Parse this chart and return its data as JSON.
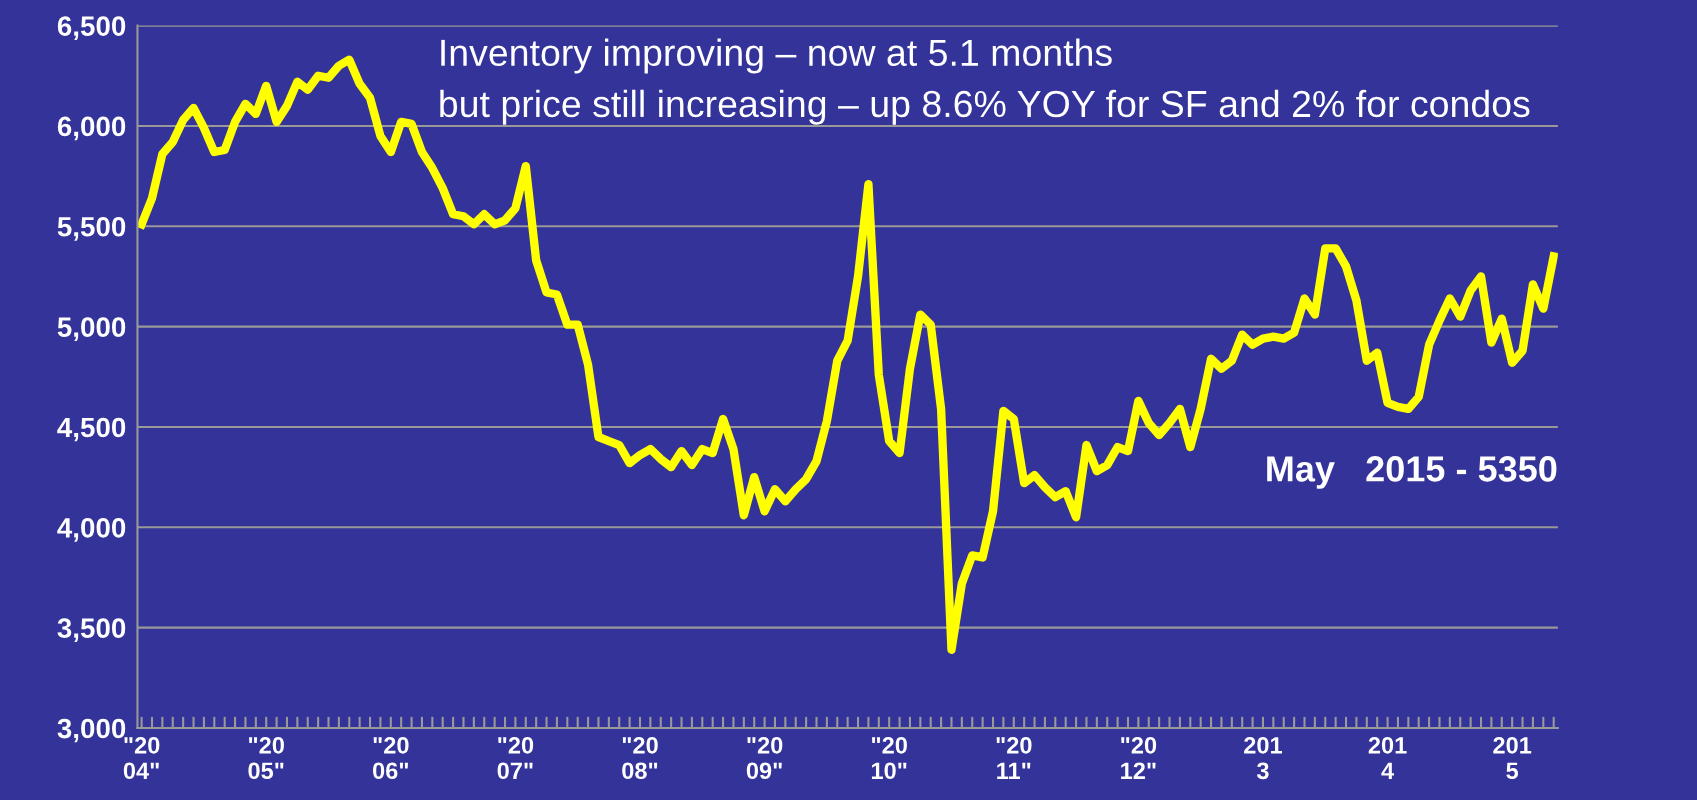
{
  "chart_data": {
    "type": "line",
    "annotations": [
      "Inventory improving – now at 5.1 months",
      "but price still increasing – up 8.6% YOY for SF and 2% for condos",
      "May   2015 - 5350"
    ],
    "categories": [
      "\"20\n04\"",
      null,
      null,
      null,
      null,
      null,
      null,
      null,
      null,
      null,
      null,
      null,
      "\"20\n05\"",
      null,
      null,
      null,
      null,
      null,
      null,
      null,
      null,
      null,
      null,
      null,
      "\"20\n06\"",
      null,
      null,
      null,
      null,
      null,
      null,
      null,
      null,
      null,
      null,
      null,
      "\"20\n07\"",
      null,
      null,
      null,
      null,
      null,
      null,
      null,
      null,
      null,
      null,
      null,
      "\"20\n08\"",
      null,
      null,
      null,
      null,
      null,
      null,
      null,
      null,
      null,
      null,
      null,
      "\"20\n09\"",
      null,
      null,
      null,
      null,
      null,
      null,
      null,
      null,
      null,
      null,
      null,
      "\"20\n10\"",
      null,
      null,
      null,
      null,
      null,
      null,
      null,
      null,
      null,
      null,
      null,
      "\"20\n11\"",
      null,
      null,
      null,
      null,
      null,
      null,
      null,
      null,
      null,
      null,
      null,
      "\"20\n12\"",
      null,
      null,
      null,
      null,
      null,
      null,
      null,
      null,
      null,
      null,
      null,
      "201\n3",
      null,
      null,
      null,
      null,
      null,
      null,
      null,
      null,
      null,
      null,
      null,
      "201\n4",
      null,
      null,
      null,
      null,
      null,
      null,
      null,
      null,
      null,
      null,
      null,
      "201\n5",
      null,
      null,
      null,
      null
    ],
    "series": [
      {
        "color": "#ffff00",
        "values": [
          5510,
          5640,
          5860,
          5920,
          6030,
          6090,
          5990,
          5870,
          5880,
          6020,
          6110,
          6060,
          6200,
          6020,
          6100,
          6220,
          6180,
          6250,
          6240,
          6300,
          6330,
          6210,
          6140,
          5950,
          5870,
          6020,
          6010,
          5870,
          5790,
          5690,
          5560,
          5550,
          5510,
          5560,
          5510,
          5530,
          5590,
          5800,
          5330,
          5170,
          5160,
          5010,
          5010,
          4810,
          4450,
          4430,
          4410,
          4320,
          4360,
          4390,
          4340,
          4300,
          4380,
          4310,
          4390,
          4370,
          4540,
          4390,
          4060,
          4250,
          4080,
          4190,
          4130,
          4190,
          4240,
          4330,
          4530,
          4830,
          4930,
          5250,
          5710,
          4760,
          4430,
          4370,
          4790,
          5060,
          5010,
          4590,
          3390,
          3720,
          3860,
          3850,
          4080,
          4580,
          4540,
          4220,
          4260,
          4200,
          4150,
          4180,
          4050,
          4410,
          4280,
          4310,
          4400,
          4380,
          4630,
          4520,
          4460,
          4520,
          4590,
          4400,
          4590,
          4840,
          4790,
          4830,
          4960,
          4910,
          4940,
          4950,
          4940,
          4970,
          5140,
          5060,
          5390,
          5390,
          5300,
          5130,
          4830,
          4870,
          4620,
          4600,
          4590,
          4650,
          4910,
          5030,
          5140,
          5050,
          5180,
          5250,
          4920,
          5040,
          4820,
          4880,
          5210,
          5090,
          5350
        ]
      }
    ],
    "ylim": [
      3000,
      6500
    ],
    "yticks": [
      {
        "value": 3000,
        "label": "3,000"
      },
      {
        "value": 3500,
        "label": "3,500"
      },
      {
        "value": 4000,
        "label": "4,000"
      },
      {
        "value": 4500,
        "label": "4,500"
      },
      {
        "value": 5000,
        "label": "5,000"
      },
      {
        "value": 5500,
        "label": "5,500"
      },
      {
        "value": 6000,
        "label": "6,000"
      },
      {
        "value": 6500,
        "label": "6,500"
      }
    ],
    "grid": "y",
    "marker": "none",
    "line_style": "solid",
    "legend": false
  }
}
